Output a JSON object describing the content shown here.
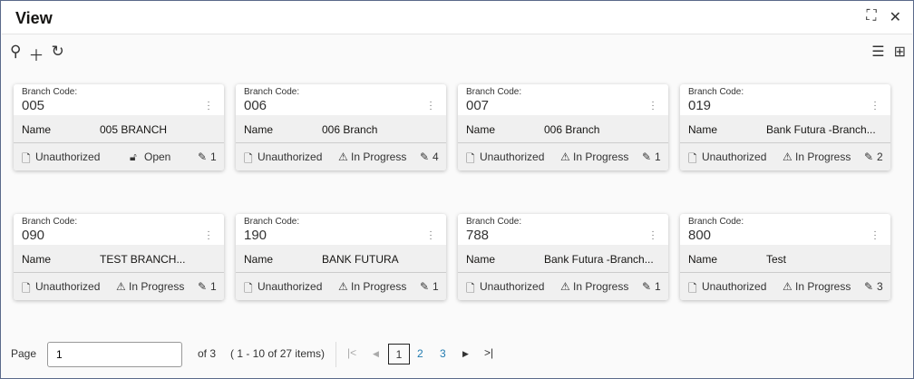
{
  "header": {
    "title": "View"
  },
  "cards": [
    {
      "label": "Branch Code:",
      "code": "005",
      "name_label": "Name",
      "name": "005 BRANCH",
      "auth": "Unauthorized",
      "status": "Open",
      "status_icon": "lock-open-icon",
      "edits": "1"
    },
    {
      "label": "Branch Code:",
      "code": "006",
      "name_label": "Name",
      "name": "006 Branch",
      "auth": "Unauthorized",
      "status": "In Progress",
      "status_icon": "warning-icon",
      "edits": "4"
    },
    {
      "label": "Branch Code:",
      "code": "007",
      "name_label": "Name",
      "name": "006 Branch",
      "auth": "Unauthorized",
      "status": "In Progress",
      "status_icon": "warning-icon",
      "edits": "1"
    },
    {
      "label": "Branch Code:",
      "code": "019",
      "name_label": "Name",
      "name": "Bank Futura -Branch...",
      "auth": "Unauthorized",
      "status": "In Progress",
      "status_icon": "warning-icon",
      "edits": "2"
    },
    {
      "label": "Branch Code:",
      "code": "090",
      "name_label": "Name",
      "name": "TEST BRANCH...",
      "auth": "Unauthorized",
      "status": "In Progress",
      "status_icon": "warning-icon",
      "edits": "1"
    },
    {
      "label": "Branch Code:",
      "code": "190",
      "name_label": "Name",
      "name": "BANK FUTURA",
      "auth": "Unauthorized",
      "status": "In Progress",
      "status_icon": "warning-icon",
      "edits": "1"
    },
    {
      "label": "Branch Code:",
      "code": "788",
      "name_label": "Name",
      "name": "Bank Futura -Branch...",
      "auth": "Unauthorized",
      "status": "In Progress",
      "status_icon": "warning-icon",
      "edits": "1"
    },
    {
      "label": "Branch Code:",
      "code": "800",
      "name_label": "Name",
      "name": "Test",
      "auth": "Unauthorized",
      "status": "In Progress",
      "status_icon": "warning-icon",
      "edits": "3"
    }
  ],
  "pagination": {
    "page_label": "Page",
    "page_value": "1",
    "of": "of 3",
    "range": "( 1 - 10 of 27 items)",
    "pages": [
      "1",
      "2",
      "3"
    ],
    "current": "1",
    "link_color": "#227bb0"
  }
}
